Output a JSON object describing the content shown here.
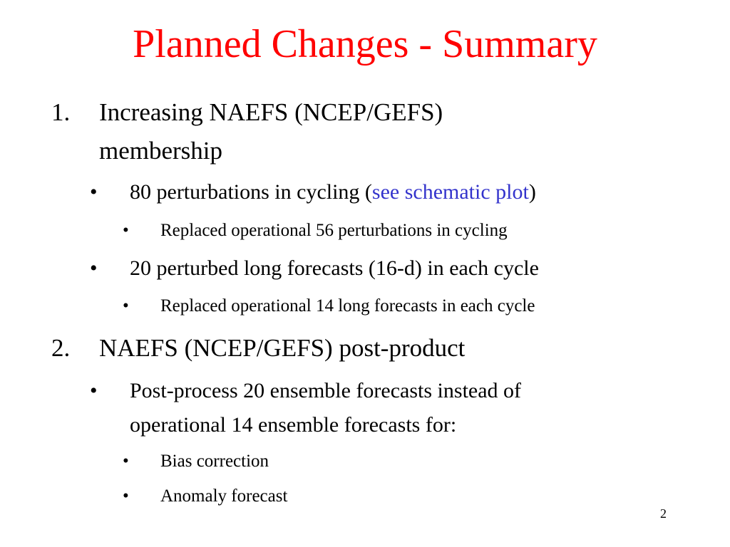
{
  "slide": {
    "title": "Planned Changes - Summary",
    "page_number": "2",
    "colors": {
      "title": "#ff0000",
      "text": "#000000",
      "link": "#3333cc",
      "background": "#ffffff"
    }
  },
  "items": [
    {
      "number": "1.",
      "line1": "Increasing NAEFS (NCEP/GEFS)",
      "line2": "membership",
      "bullets": [
        {
          "marker": "•",
          "text_before": "80 perturbations in cycling (",
          "link": "see schematic plot",
          "text_after": ")",
          "sub": [
            {
              "marker": "•",
              "text": "Replaced operational 56 perturbations in cycling"
            }
          ]
        },
        {
          "marker": "•",
          "text": "20 perturbed long forecasts (16-d) in each cycle",
          "sub": [
            {
              "marker": "•",
              "text": "Replaced operational 14 long forecasts in each cycle"
            }
          ]
        }
      ]
    },
    {
      "number": "2.",
      "line1": "NAEFS (NCEP/GEFS) post-product",
      "bullets": [
        {
          "marker": "•",
          "line1": "Post-process 20 ensemble forecasts instead of",
          "line2": "operational 14 ensemble forecasts for:",
          "sub": [
            {
              "marker": "•",
              "text": "Bias correction"
            },
            {
              "marker": "•",
              "text": "Anomaly forecast"
            }
          ]
        }
      ]
    }
  ]
}
